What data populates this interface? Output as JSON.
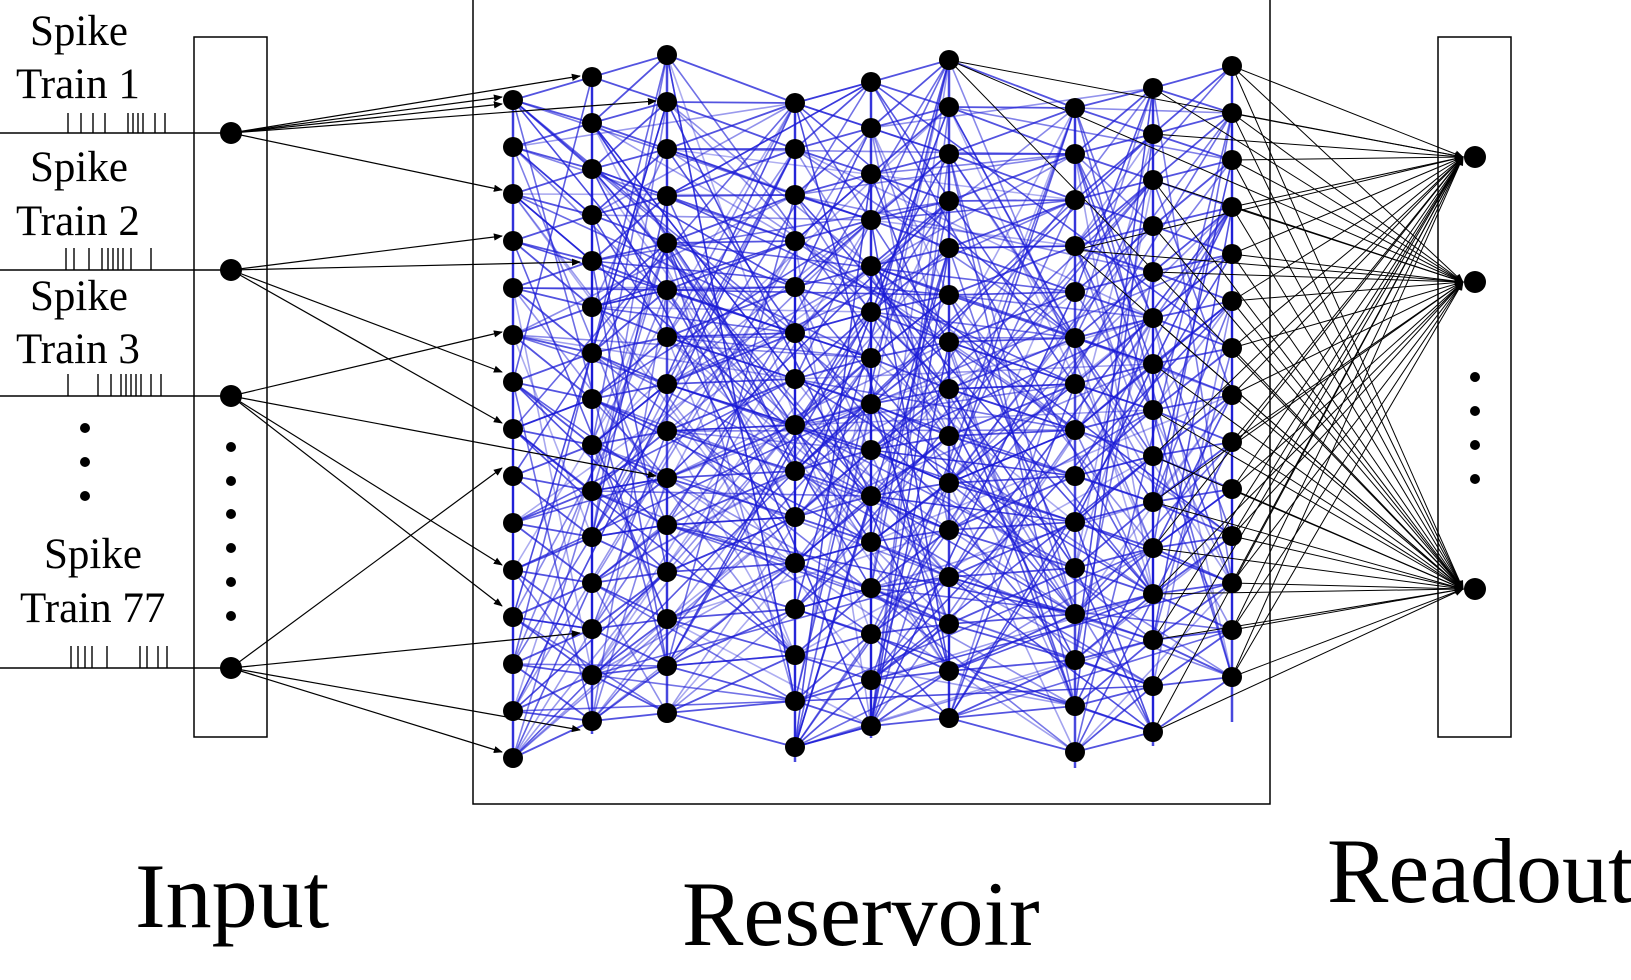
{
  "input": {
    "title": "Input",
    "trains": [
      {
        "line1": "Spike",
        "line2": "Train 1"
      },
      {
        "line1": "Spike",
        "line2": "Train 2"
      },
      {
        "line1": "Spike",
        "line2": "Train 3"
      },
      {
        "line1": "Spike",
        "line2": "Train 77"
      }
    ]
  },
  "reservoir": {
    "title": "Reservoir"
  },
  "readout": {
    "title": "Readout"
  },
  "colors": {
    "ink": "#000000",
    "reservoir_edges": "#1a1ad6",
    "background": "#ffffff"
  }
}
